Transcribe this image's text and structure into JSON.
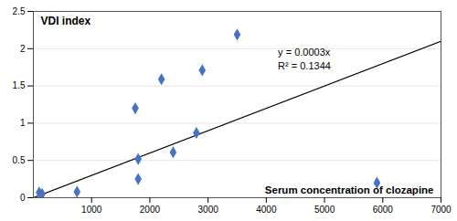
{
  "chart_data": {
    "type": "scatter",
    "ylabel": "VDI index",
    "xlabel": "Serum concentration of clozapine",
    "x": [
      100,
      150,
      750,
      1750,
      1800,
      1800,
      2200,
      2400,
      2800,
      2900,
      3500,
      5900
    ],
    "values": [
      0.07,
      0.05,
      0.08,
      1.2,
      0.52,
      0.25,
      1.59,
      0.61,
      0.87,
      1.71,
      2.19,
      0.2
    ],
    "color": "#4472C4",
    "marker": "diamond",
    "trendline": {
      "x": [
        0,
        7000
      ],
      "y": [
        0,
        2.1
      ],
      "color": "#000000"
    },
    "annotations": [
      {
        "text": "y = 0.0003x",
        "x": 4200,
        "y": 1.95,
        "color": "#000000"
      },
      {
        "text": "R² = 0.1344",
        "x": 4200,
        "y": 1.77,
        "color": "#000000"
      }
    ],
    "xlim": [
      0,
      7000
    ],
    "ylim": [
      0,
      2.5
    ],
    "xticks": [
      1000,
      2000,
      3000,
      4000,
      5000,
      6000,
      7000
    ],
    "yticks": [
      0,
      0.5,
      1.0,
      1.5,
      2.0,
      2.5
    ],
    "grid": "y"
  }
}
